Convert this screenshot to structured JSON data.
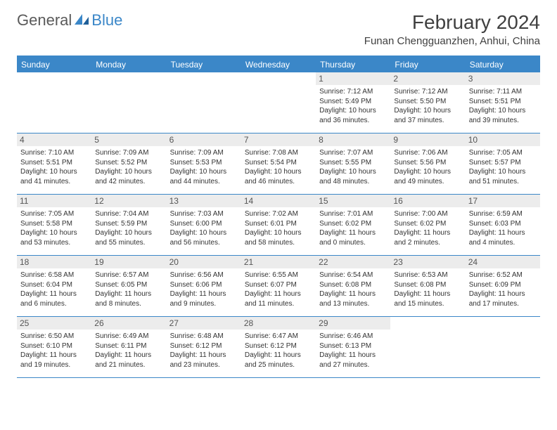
{
  "logo": {
    "part1": "General",
    "part2": "Blue"
  },
  "title": "February 2024",
  "location": "Funan Chengguanzhen, Anhui, China",
  "colors": {
    "accent": "#3b87c8",
    "header_text": "#ffffff",
    "date_bg": "#ececec",
    "text": "#333333",
    "title_text": "#404040"
  },
  "day_names": [
    "Sunday",
    "Monday",
    "Tuesday",
    "Wednesday",
    "Thursday",
    "Friday",
    "Saturday"
  ],
  "weeks": [
    [
      null,
      null,
      null,
      null,
      {
        "d": "1",
        "sr": "7:12 AM",
        "ss": "5:49 PM",
        "dl1": "Daylight: 10 hours",
        "dl2": "and 36 minutes."
      },
      {
        "d": "2",
        "sr": "7:12 AM",
        "ss": "5:50 PM",
        "dl1": "Daylight: 10 hours",
        "dl2": "and 37 minutes."
      },
      {
        "d": "3",
        "sr": "7:11 AM",
        "ss": "5:51 PM",
        "dl1": "Daylight: 10 hours",
        "dl2": "and 39 minutes."
      }
    ],
    [
      {
        "d": "4",
        "sr": "7:10 AM",
        "ss": "5:51 PM",
        "dl1": "Daylight: 10 hours",
        "dl2": "and 41 minutes."
      },
      {
        "d": "5",
        "sr": "7:09 AM",
        "ss": "5:52 PM",
        "dl1": "Daylight: 10 hours",
        "dl2": "and 42 minutes."
      },
      {
        "d": "6",
        "sr": "7:09 AM",
        "ss": "5:53 PM",
        "dl1": "Daylight: 10 hours",
        "dl2": "and 44 minutes."
      },
      {
        "d": "7",
        "sr": "7:08 AM",
        "ss": "5:54 PM",
        "dl1": "Daylight: 10 hours",
        "dl2": "and 46 minutes."
      },
      {
        "d": "8",
        "sr": "7:07 AM",
        "ss": "5:55 PM",
        "dl1": "Daylight: 10 hours",
        "dl2": "and 48 minutes."
      },
      {
        "d": "9",
        "sr": "7:06 AM",
        "ss": "5:56 PM",
        "dl1": "Daylight: 10 hours",
        "dl2": "and 49 minutes."
      },
      {
        "d": "10",
        "sr": "7:05 AM",
        "ss": "5:57 PM",
        "dl1": "Daylight: 10 hours",
        "dl2": "and 51 minutes."
      }
    ],
    [
      {
        "d": "11",
        "sr": "7:05 AM",
        "ss": "5:58 PM",
        "dl1": "Daylight: 10 hours",
        "dl2": "and 53 minutes."
      },
      {
        "d": "12",
        "sr": "7:04 AM",
        "ss": "5:59 PM",
        "dl1": "Daylight: 10 hours",
        "dl2": "and 55 minutes."
      },
      {
        "d": "13",
        "sr": "7:03 AM",
        "ss": "6:00 PM",
        "dl1": "Daylight: 10 hours",
        "dl2": "and 56 minutes."
      },
      {
        "d": "14",
        "sr": "7:02 AM",
        "ss": "6:01 PM",
        "dl1": "Daylight: 10 hours",
        "dl2": "and 58 minutes."
      },
      {
        "d": "15",
        "sr": "7:01 AM",
        "ss": "6:02 PM",
        "dl1": "Daylight: 11 hours",
        "dl2": "and 0 minutes."
      },
      {
        "d": "16",
        "sr": "7:00 AM",
        "ss": "6:02 PM",
        "dl1": "Daylight: 11 hours",
        "dl2": "and 2 minutes."
      },
      {
        "d": "17",
        "sr": "6:59 AM",
        "ss": "6:03 PM",
        "dl1": "Daylight: 11 hours",
        "dl2": "and 4 minutes."
      }
    ],
    [
      {
        "d": "18",
        "sr": "6:58 AM",
        "ss": "6:04 PM",
        "dl1": "Daylight: 11 hours",
        "dl2": "and 6 minutes."
      },
      {
        "d": "19",
        "sr": "6:57 AM",
        "ss": "6:05 PM",
        "dl1": "Daylight: 11 hours",
        "dl2": "and 8 minutes."
      },
      {
        "d": "20",
        "sr": "6:56 AM",
        "ss": "6:06 PM",
        "dl1": "Daylight: 11 hours",
        "dl2": "and 9 minutes."
      },
      {
        "d": "21",
        "sr": "6:55 AM",
        "ss": "6:07 PM",
        "dl1": "Daylight: 11 hours",
        "dl2": "and 11 minutes."
      },
      {
        "d": "22",
        "sr": "6:54 AM",
        "ss": "6:08 PM",
        "dl1": "Daylight: 11 hours",
        "dl2": "and 13 minutes."
      },
      {
        "d": "23",
        "sr": "6:53 AM",
        "ss": "6:08 PM",
        "dl1": "Daylight: 11 hours",
        "dl2": "and 15 minutes."
      },
      {
        "d": "24",
        "sr": "6:52 AM",
        "ss": "6:09 PM",
        "dl1": "Daylight: 11 hours",
        "dl2": "and 17 minutes."
      }
    ],
    [
      {
        "d": "25",
        "sr": "6:50 AM",
        "ss": "6:10 PM",
        "dl1": "Daylight: 11 hours",
        "dl2": "and 19 minutes."
      },
      {
        "d": "26",
        "sr": "6:49 AM",
        "ss": "6:11 PM",
        "dl1": "Daylight: 11 hours",
        "dl2": "and 21 minutes."
      },
      {
        "d": "27",
        "sr": "6:48 AM",
        "ss": "6:12 PM",
        "dl1": "Daylight: 11 hours",
        "dl2": "and 23 minutes."
      },
      {
        "d": "28",
        "sr": "6:47 AM",
        "ss": "6:12 PM",
        "dl1": "Daylight: 11 hours",
        "dl2": "and 25 minutes."
      },
      {
        "d": "29",
        "sr": "6:46 AM",
        "ss": "6:13 PM",
        "dl1": "Daylight: 11 hours",
        "dl2": "and 27 minutes."
      },
      null,
      null
    ]
  ],
  "labels": {
    "sunrise": "Sunrise: ",
    "sunset": "Sunset: "
  }
}
